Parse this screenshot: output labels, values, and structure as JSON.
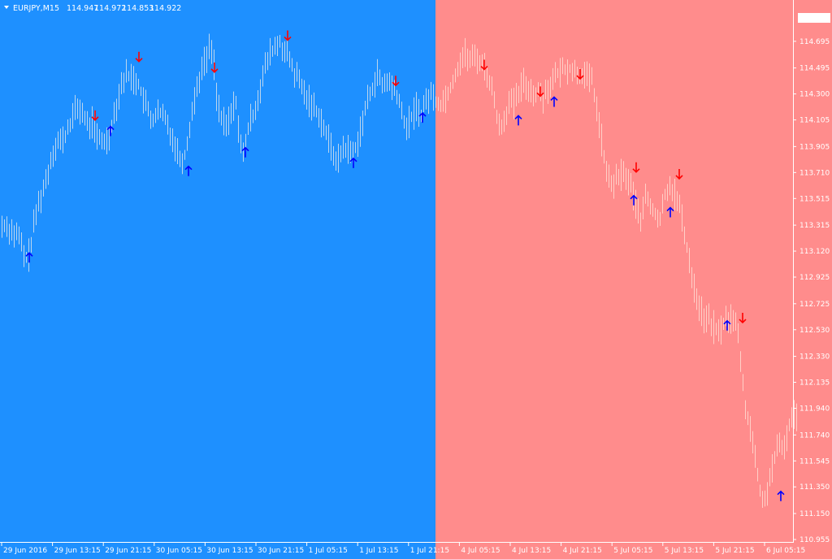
{
  "header": {
    "symbol": "EURJPY,M15",
    "open": "114.947",
    "high": "114.972",
    "low": "114.853",
    "close": "114.922"
  },
  "colors": {
    "background_left": "#1e90ff",
    "background_right": "#ff8c8c",
    "bars_left": "#bcd6ee",
    "bars_right": "#ffd0c8",
    "up_arrow": "#0000ff",
    "down_arrow": "#ff0000",
    "axis": "#ffffff",
    "current_price_label": "#ffffff",
    "current_price_text": "#ff8c8c"
  },
  "chart_data": {
    "type": "bar",
    "title": "EURJPY,M15",
    "current_price": "114.871",
    "ylim": [
      110.955,
      114.871
    ],
    "grid": false,
    "y_ticks": [
      "114.695",
      "114.495",
      "114.300",
      "114.105",
      "113.905",
      "113.710",
      "113.515",
      "113.315",
      "113.120",
      "112.925",
      "112.725",
      "112.530",
      "112.330",
      "112.135",
      "111.940",
      "111.740",
      "111.545",
      "111.350",
      "111.150",
      "110.955"
    ],
    "x_ticks": [
      "29 Jun 2016",
      "29 Jun 13:15",
      "29 Jun 21:15",
      "30 Jun 05:15",
      "30 Jun 13:15",
      "30 Jun 21:15",
      "1 Jul 05:15",
      "1 Jul 13:15",
      "1 Jul 21:15",
      "4 Jul 05:15",
      "4 Jul 13:15",
      "4 Jul 21:15",
      "5 Jul 05:15",
      "5 Jul 13:15",
      "5 Jul 21:15",
      "6 Jul 05:15"
    ],
    "series": [
      {
        "name": "EURJPY",
        "path": [
          [
            0,
            113.3
          ],
          [
            6,
            113.32
          ],
          [
            12,
            113.28
          ],
          [
            18,
            113.25
          ],
          [
            24,
            113.22
          ],
          [
            30,
            113.05
          ],
          [
            36,
            113.1
          ],
          [
            42,
            113.35
          ],
          [
            48,
            113.5
          ],
          [
            54,
            113.6
          ],
          [
            60,
            113.75
          ],
          [
            66,
            113.9
          ],
          [
            72,
            113.95
          ],
          [
            78,
            113.95
          ],
          [
            84,
            114.05
          ],
          [
            90,
            114.15
          ],
          [
            96,
            114.2
          ],
          [
            102,
            114.15
          ],
          [
            108,
            114.05
          ],
          [
            114,
            114.1
          ],
          [
            120,
            113.95
          ],
          [
            126,
            113.95
          ],
          [
            132,
            113.95
          ],
          [
            138,
            114.1
          ],
          [
            144,
            114.25
          ],
          [
            150,
            114.4
          ],
          [
            156,
            114.45
          ],
          [
            162,
            114.42
          ],
          [
            168,
            114.4
          ],
          [
            174,
            114.3
          ],
          [
            180,
            114.2
          ],
          [
            186,
            114.1
          ],
          [
            192,
            114.15
          ],
          [
            198,
            114.15
          ],
          [
            204,
            114.1
          ],
          [
            210,
            114.0
          ],
          [
            216,
            113.9
          ],
          [
            222,
            113.8
          ],
          [
            228,
            113.85
          ],
          [
            234,
            114.1
          ],
          [
            240,
            114.3
          ],
          [
            246,
            114.45
          ],
          [
            252,
            114.55
          ],
          [
            258,
            114.65
          ],
          [
            262,
            114.6
          ],
          [
            266,
            114.3
          ],
          [
            272,
            114.1
          ],
          [
            278,
            114.05
          ],
          [
            284,
            114.15
          ],
          [
            290,
            114.25
          ],
          [
            294,
            114.0
          ],
          [
            298,
            113.8
          ],
          [
            302,
            113.95
          ],
          [
            308,
            114.1
          ],
          [
            314,
            114.2
          ],
          [
            320,
            114.35
          ],
          [
            326,
            114.5
          ],
          [
            332,
            114.6
          ],
          [
            338,
            114.65
          ],
          [
            344,
            114.68
          ],
          [
            350,
            114.62
          ],
          [
            356,
            114.55
          ],
          [
            362,
            114.45
          ],
          [
            368,
            114.4
          ],
          [
            374,
            114.3
          ],
          [
            380,
            114.25
          ],
          [
            386,
            114.2
          ],
          [
            392,
            114.15
          ],
          [
            398,
            114.05
          ],
          [
            404,
            113.95
          ],
          [
            410,
            113.85
          ],
          [
            416,
            113.8
          ],
          [
            422,
            113.9
          ],
          [
            428,
            113.88
          ],
          [
            434,
            113.85
          ],
          [
            440,
            113.95
          ],
          [
            446,
            114.1
          ],
          [
            452,
            114.25
          ],
          [
            458,
            114.35
          ],
          [
            464,
            114.45
          ],
          [
            470,
            114.35
          ],
          [
            476,
            114.4
          ],
          [
            482,
            114.35
          ],
          [
            488,
            114.3
          ],
          [
            494,
            114.15
          ],
          [
            500,
            114.05
          ],
          [
            506,
            114.12
          ],
          [
            512,
            114.2
          ],
          [
            518,
            114.15
          ],
          [
            524,
            114.25
          ],
          [
            530,
            114.3
          ],
          [
            536,
            114.25
          ],
          [
            542,
            114.22
          ],
          [
            548,
            114.28
          ],
          [
            554,
            114.35
          ],
          [
            560,
            114.45
          ],
          [
            566,
            114.55
          ],
          [
            572,
            114.6
          ],
          [
            578,
            114.55
          ],
          [
            584,
            114.58
          ],
          [
            590,
            114.55
          ],
          [
            596,
            114.5
          ],
          [
            602,
            114.4
          ],
          [
            608,
            114.25
          ],
          [
            614,
            114.05
          ],
          [
            620,
            114.1
          ],
          [
            626,
            114.25
          ],
          [
            632,
            114.22
          ],
          [
            638,
            114.3
          ],
          [
            644,
            114.38
          ],
          [
            650,
            114.35
          ],
          [
            656,
            114.3
          ],
          [
            662,
            114.32
          ],
          [
            668,
            114.28
          ],
          [
            674,
            114.35
          ],
          [
            680,
            114.4
          ],
          [
            686,
            114.45
          ],
          [
            692,
            114.48
          ],
          [
            698,
            114.5
          ],
          [
            704,
            114.48
          ],
          [
            710,
            114.45
          ],
          [
            716,
            114.46
          ],
          [
            722,
            114.42
          ],
          [
            728,
            114.4
          ],
          [
            734,
            114.2
          ],
          [
            740,
            113.95
          ],
          [
            746,
            113.7
          ],
          [
            752,
            113.62
          ],
          [
            758,
            113.65
          ],
          [
            764,
            113.7
          ],
          [
            770,
            113.68
          ],
          [
            776,
            113.62
          ],
          [
            780,
            113.5
          ],
          [
            786,
            113.4
          ],
          [
            790,
            113.35
          ],
          [
            794,
            113.55
          ],
          [
            800,
            113.45
          ],
          [
            806,
            113.4
          ],
          [
            812,
            113.35
          ],
          [
            818,
            113.55
          ],
          [
            824,
            113.62
          ],
          [
            830,
            113.55
          ],
          [
            836,
            113.45
          ],
          [
            842,
            113.25
          ],
          [
            848,
            113.05
          ],
          [
            854,
            112.85
          ],
          [
            860,
            112.7
          ],
          [
            866,
            112.62
          ],
          [
            872,
            112.6
          ],
          [
            878,
            112.55
          ],
          [
            884,
            112.5
          ],
          [
            890,
            112.58
          ],
          [
            896,
            112.62
          ],
          [
            902,
            112.6
          ],
          [
            906,
            112.55
          ],
          [
            910,
            112.4
          ],
          [
            914,
            112.1
          ],
          [
            918,
            111.9
          ],
          [
            922,
            111.85
          ],
          [
            928,
            111.6
          ],
          [
            934,
            111.35
          ],
          [
            940,
            111.2
          ],
          [
            946,
            111.4
          ],
          [
            952,
            111.55
          ],
          [
            958,
            111.65
          ],
          [
            964,
            111.62
          ],
          [
            970,
            111.8
          ],
          [
            976,
            111.9
          ],
          [
            982,
            111.85
          ]
        ]
      }
    ],
    "signals": [
      {
        "type": "up",
        "x": 36,
        "price": 113.07
      },
      {
        "type": "down",
        "x": 117,
        "price": 114.14
      },
      {
        "type": "up",
        "x": 136,
        "price": 114.02
      },
      {
        "type": "down",
        "x": 171,
        "price": 114.58
      },
      {
        "type": "up",
        "x": 232,
        "price": 113.72
      },
      {
        "type": "down",
        "x": 264,
        "price": 114.5
      },
      {
        "type": "up",
        "x": 302,
        "price": 113.86
      },
      {
        "type": "down",
        "x": 354,
        "price": 114.74
      },
      {
        "type": "up",
        "x": 435,
        "price": 113.78
      },
      {
        "type": "down",
        "x": 487,
        "price": 114.4
      },
      {
        "type": "up",
        "x": 520,
        "price": 114.12
      },
      {
        "type": "down",
        "x": 596,
        "price": 114.52
      },
      {
        "type": "up",
        "x": 638,
        "price": 114.1
      },
      {
        "type": "down",
        "x": 665,
        "price": 114.32
      },
      {
        "type": "up",
        "x": 682,
        "price": 114.24
      },
      {
        "type": "down",
        "x": 714,
        "price": 114.45
      },
      {
        "type": "down",
        "x": 783,
        "price": 113.75
      },
      {
        "type": "up",
        "x": 780,
        "price": 113.5
      },
      {
        "type": "down",
        "x": 836,
        "price": 113.7
      },
      {
        "type": "up",
        "x": 825,
        "price": 113.41
      },
      {
        "type": "up",
        "x": 895,
        "price": 112.56
      },
      {
        "type": "down",
        "x": 914,
        "price": 112.62
      },
      {
        "type": "up",
        "x": 961,
        "price": 111.28
      }
    ],
    "regions": [
      {
        "name": "left-region",
        "x_end": 536
      },
      {
        "name": "right-region",
        "x_end": 976
      }
    ]
  }
}
